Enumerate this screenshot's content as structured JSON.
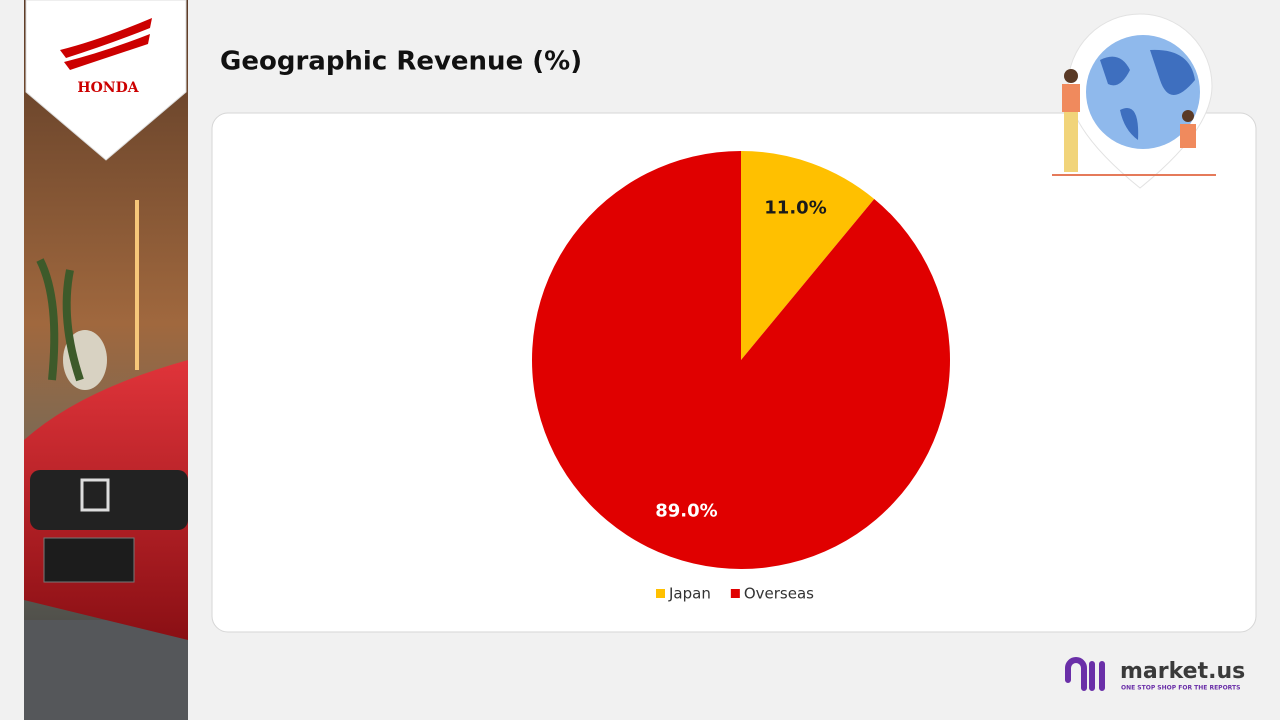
{
  "branding": {
    "logo": "HONDA",
    "brand": "market.us",
    "tagline": "ONE STOP SHOP FOR THE REPORTS"
  },
  "chart_data": {
    "type": "pie",
    "title": "Geographic Revenue (%)",
    "categories": [
      "Japan",
      "Overseas"
    ],
    "values": [
      11.0,
      89.0
    ],
    "value_labels": [
      "11.0%",
      "89.0%"
    ],
    "colors": [
      "#ffc000",
      "#e00000"
    ],
    "label_colors": [
      "#1a1a1a",
      "#ffffff"
    ],
    "legend": "bottom"
  }
}
